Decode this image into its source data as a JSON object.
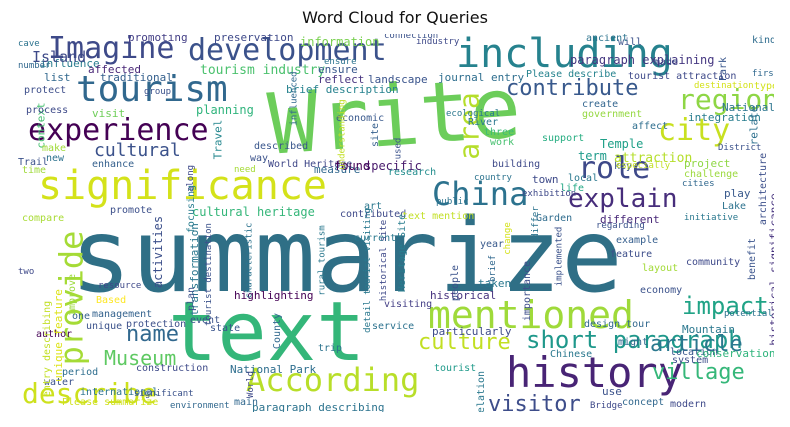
{
  "title": "Word Cloud for Queries",
  "words": [
    {
      "text": "summarize",
      "color": "#2f6f86"
    },
    {
      "text": "Write",
      "color": "#6ccd5a"
    },
    {
      "text": "text",
      "color": "#34b679"
    },
    {
      "text": "significance",
      "color": "#d4e21a"
    },
    {
      "text": "including",
      "color": "#26828e"
    },
    {
      "text": "development",
      "color": "#3b528b"
    },
    {
      "text": "history",
      "color": "#482475"
    },
    {
      "text": "tourism",
      "color": "#31688e"
    },
    {
      "text": "Imagine",
      "color": "#3e4a89"
    },
    {
      "text": "experience",
      "color": "#440154"
    },
    {
      "text": "mentioned",
      "color": "#9fda3a"
    },
    {
      "text": "According",
      "color": "#b8de29"
    },
    {
      "text": "describe",
      "color": "#cde11d"
    },
    {
      "text": "provide",
      "color": "#a5db36"
    },
    {
      "text": "China",
      "color": "#2c728e"
    },
    {
      "text": "explain",
      "color": "#472d7b"
    },
    {
      "text": "role",
      "color": "#3e4989"
    },
    {
      "text": "city",
      "color": "#c8e020"
    },
    {
      "text": "region",
      "color": "#8ed645"
    },
    {
      "text": "contribute",
      "color": "#38598c"
    },
    {
      "text": "short paragraph",
      "color": "#1f988b"
    },
    {
      "text": "impact",
      "color": "#20a386"
    },
    {
      "text": "culture",
      "color": "#c2df23"
    },
    {
      "text": "area",
      "color": "#b5de2b"
    },
    {
      "text": "name",
      "color": "#31688e"
    },
    {
      "text": "Museum",
      "color": "#5ec962"
    },
    {
      "text": "visitor",
      "color": "#3d4d8a"
    },
    {
      "text": "village",
      "color": "#35b779"
    },
    {
      "text": "article",
      "color": "#2a788e"
    },
    {
      "text": "cultural",
      "color": "#3b528b"
    },
    {
      "text": "tourism industry",
      "color": "#4ac16d"
    },
    {
      "text": "information",
      "color": "#7ad151"
    },
    {
      "text": "preservation",
      "color": "#3e4989"
    },
    {
      "text": "promoting",
      "color": "#433e85"
    },
    {
      "text": "paragraph explaining",
      "color": "#453781"
    },
    {
      "text": "influence",
      "color": "#287c8e"
    },
    {
      "text": "affected",
      "color": "#482677"
    },
    {
      "text": "Island",
      "color": "#3e4a89"
    },
    {
      "text": "traditional",
      "color": "#35608d"
    },
    {
      "text": "list",
      "color": "#31688e"
    },
    {
      "text": "reflect",
      "color": "#46327e"
    },
    {
      "text": "landscape",
      "color": "#3a548c"
    },
    {
      "text": "ensure",
      "color": "#38588c"
    },
    {
      "text": "brief description",
      "color": "#26828e"
    },
    {
      "text": "journal entry",
      "color": "#2e6e8e"
    },
    {
      "text": "Please describe",
      "color": "#25838e"
    },
    {
      "text": "term",
      "color": "#1e9b8a"
    },
    {
      "text": "Temple",
      "color": "#1fa088"
    },
    {
      "text": "National",
      "color": "#2b748e"
    },
    {
      "text": "integration",
      "color": "#287d8e"
    },
    {
      "text": "relate",
      "color": "#2d708e"
    },
    {
      "text": "activities",
      "color": "#3c508b"
    },
    {
      "text": "planning",
      "color": "#2fb47c"
    },
    {
      "text": "Travel",
      "color": "#24878e"
    },
    {
      "text": "measure",
      "color": "#31688e"
    },
    {
      "text": "economic",
      "color": "#38588c"
    },
    {
      "text": "site",
      "color": "#355f8d"
    },
    {
      "text": "River",
      "color": "#2a778e"
    },
    {
      "text": "three",
      "color": "#3bbb75"
    },
    {
      "text": "work",
      "color": "#46c06f"
    },
    {
      "text": "support",
      "color": "#26ad81"
    },
    {
      "text": "government",
      "color": "#95d840"
    },
    {
      "text": "attraction",
      "color": "#b5de2b"
    },
    {
      "text": "project",
      "color": "#8fd744"
    },
    {
      "text": "challenge",
      "color": "#9bd93c"
    },
    {
      "text": "World Heritage",
      "color": "#3f4788"
    },
    {
      "text": "found",
      "color": "#440154"
    },
    {
      "text": "specific",
      "color": "#481a6c"
    },
    {
      "text": "research",
      "color": "#228d8d"
    },
    {
      "text": "town",
      "color": "#3e4a89"
    },
    {
      "text": "country",
      "color": "#2c738e"
    },
    {
      "text": "life",
      "color": "#22a884"
    },
    {
      "text": "play",
      "color": "#38598c"
    },
    {
      "text": "cultural heritage",
      "color": "#34b679"
    },
    {
      "text": "focusing",
      "color": "#287c8e"
    },
    {
      "text": "contributed",
      "color": "#3e4989"
    },
    {
      "text": "text mention",
      "color": "#c2df23"
    },
    {
      "text": "different",
      "color": "#482878"
    },
    {
      "text": "Lake",
      "color": "#2c728e"
    },
    {
      "text": "Garden",
      "color": "#2f6c8e"
    },
    {
      "text": "compare",
      "color": "#a8db34"
    },
    {
      "text": "promote",
      "color": "#3c4f8a"
    },
    {
      "text": "transformation",
      "color": "#2a778e"
    },
    {
      "text": "example",
      "color": "#355e8d"
    },
    {
      "text": "feature",
      "color": "#3d4e8a"
    },
    {
      "text": "community",
      "color": "#3e4989"
    },
    {
      "text": "layout",
      "color": "#a2da37"
    },
    {
      "text": "economy",
      "color": "#3b528b"
    },
    {
      "text": "historical significance",
      "color": "#46327e"
    },
    {
      "text": "architecture",
      "color": "#3c4f8a"
    },
    {
      "text": "Based",
      "color": "#fde725"
    },
    {
      "text": "highlighting",
      "color": "#440154"
    },
    {
      "text": "event",
      "color": "#3b528b"
    },
    {
      "text": "current",
      "color": "#2a788e"
    },
    {
      "text": "year",
      "color": "#38598c"
    },
    {
      "text": "Heritage Site",
      "color": "#287c8e"
    },
    {
      "text": "taken",
      "color": "#2a788e"
    },
    {
      "text": "historical",
      "color": "#46327e"
    },
    {
      "text": "design tour",
      "color": "#31688e"
    },
    {
      "text": "Mountain",
      "color": "#2a778e"
    },
    {
      "text": "management",
      "color": "#33628d"
    },
    {
      "text": "unique",
      "color": "#3b528b"
    },
    {
      "text": "protection",
      "color": "#3c4f8a"
    },
    {
      "text": "visiting",
      "color": "#433e85"
    },
    {
      "text": "service",
      "color": "#2c728e"
    },
    {
      "text": "particularly",
      "color": "#3e4a89"
    },
    {
      "text": "might",
      "color": "#31688e"
    },
    {
      "text": "location",
      "color": "#39568c"
    },
    {
      "text": "conservation",
      "color": "#2fb47c"
    },
    {
      "text": "National Park",
      "color": "#2e6e8e"
    },
    {
      "text": "construction",
      "color": "#3e4a89"
    },
    {
      "text": "tourist",
      "color": "#1f9a8a"
    },
    {
      "text": "system",
      "color": "#3d4d8a"
    },
    {
      "text": "paragraph describing",
      "color": "#2c738e"
    },
    {
      "text": "use",
      "color": "#3b528b"
    },
    {
      "text": "concept",
      "color": "#31688e"
    },
    {
      "text": "modern",
      "color": "#3e4989"
    },
    {
      "text": "Please summarize",
      "color": "#d0e11c"
    },
    {
      "text": "main",
      "color": "#31688e"
    },
    {
      "text": "state",
      "color": "#3a548c"
    },
    {
      "text": "author",
      "color": "#440154"
    },
    {
      "text": "water",
      "color": "#3b528b"
    },
    {
      "text": "period",
      "color": "#2e6e8e"
    },
    {
      "text": "one",
      "color": "#34608d"
    },
    {
      "text": "context",
      "color": "#45c06f"
    },
    {
      "text": "process",
      "color": "#3e4a89"
    },
    {
      "text": "protect",
      "color": "#3d4e8a"
    },
    {
      "text": "visit",
      "color": "#6ece58"
    },
    {
      "text": "Trail",
      "color": "#3b528b"
    },
    {
      "text": "make",
      "color": "#a0da39"
    },
    {
      "text": "time",
      "color": "#9fda3a"
    },
    {
      "text": "enhance",
      "color": "#35608d"
    },
    {
      "text": "new",
      "color": "#2c728e"
    },
    {
      "text": "way",
      "color": "#3b528b"
    },
    {
      "text": "described",
      "color": "#39568c"
    },
    {
      "text": "key",
      "color": "#3a548c"
    },
    {
      "text": "create",
      "color": "#32658e"
    },
    {
      "text": "affect",
      "color": "#2e6e8e"
    },
    {
      "text": "local",
      "color": "#2a788e"
    },
    {
      "text": "building",
      "color": "#3e4989"
    },
    {
      "text": "art",
      "color": "#2a778e"
    },
    {
      "text": "Park",
      "color": "#39568c"
    },
    {
      "text": "made",
      "color": "#3e4989"
    },
    {
      "text": "will",
      "color": "#3b528b"
    },
    {
      "text": "ancient",
      "color": "#2c738e"
    },
    {
      "text": "kind",
      "color": "#2f6c8e"
    },
    {
      "text": "first",
      "color": "#31688e"
    },
    {
      "text": "type",
      "color": "#d2e21b"
    },
    {
      "text": "differ",
      "color": "#2c738e"
    },
    {
      "text": "importance",
      "color": "#3d4d8a"
    },
    {
      "text": "people",
      "color": "#3b528b"
    },
    {
      "text": "Chinese",
      "color": "#2a788e"
    },
    {
      "text": "County",
      "color": "#31688e"
    },
    {
      "text": "plan",
      "color": "#3b528b"
    },
    {
      "text": "unique feature",
      "color": "#dde318"
    },
    {
      "text": "entry describing",
      "color": "#c2df23"
    },
    {
      "text": "World",
      "color": "#3e4989"
    },
    {
      "text": "international",
      "color": "#2c738e"
    },
    {
      "text": "relation",
      "color": "#2a788e"
    },
    {
      "text": "Bridge",
      "color": "#3e4989"
    },
    {
      "text": "environment",
      "color": "#31688e"
    },
    {
      "text": "significant",
      "color": "#3b528b"
    },
    {
      "text": "potential",
      "color": "#2c738e"
    },
    {
      "text": "benefit",
      "color": "#3a548c"
    },
    {
      "text": "improve",
      "color": "#9bd93c"
    },
    {
      "text": "resource",
      "color": "#3e4989"
    },
    {
      "text": "number",
      "color": "#31688e"
    },
    {
      "text": "cave",
      "color": "#2c738e"
    },
    {
      "text": "connection",
      "color": "#3b528b"
    },
    {
      "text": "ecological",
      "color": "#2a788e"
    },
    {
      "text": "destination",
      "color": "#d4e21a"
    },
    {
      "text": "tourist attraction",
      "color": "#3e4989"
    },
    {
      "text": "District",
      "color": "#3b528b"
    },
    {
      "text": "cities",
      "color": "#31688e"
    },
    {
      "text": "initiative",
      "color": "#2a788e"
    },
    {
      "text": "regarding",
      "color": "#3b528b"
    },
    {
      "text": "especially",
      "color": "#c2df23"
    },
    {
      "text": "exhibition",
      "color": "#3e4989"
    },
    {
      "text": "public",
      "color": "#2c738e"
    },
    {
      "text": "implemented",
      "color": "#3b528b"
    },
    {
      "text": "brief",
      "color": "#31688e"
    },
    {
      "text": "historical site",
      "color": "#3e4989"
    },
    {
      "text": "rural tourism",
      "color": "#2a788e"
    },
    {
      "text": "tourist destination",
      "color": "#3b528b"
    },
    {
      "text": "characteristic",
      "color": "#2c738e"
    },
    {
      "text": "along",
      "color": "#3e4989"
    },
    {
      "text": "need",
      "color": "#a5db36"
    },
    {
      "text": "group",
      "color": "#3b528b"
    },
    {
      "text": "influenced",
      "color": "#31688e"
    },
    {
      "text": "ensure",
      "color": "#2c738e"
    },
    {
      "text": "two",
      "color": "#3e4989"
    },
    {
      "text": "detail tourist visiting",
      "color": "#2a788e"
    },
    {
      "text": "change",
      "color": "#d4e21a"
    },
    {
      "text": "understanding",
      "color": "#c2df23"
    },
    {
      "text": "used",
      "color": "#3b528b"
    },
    {
      "text": "industry",
      "color": "#3e4989"
    },
    {
      "text": "trip",
      "color": "#2c738e"
    }
  ]
}
